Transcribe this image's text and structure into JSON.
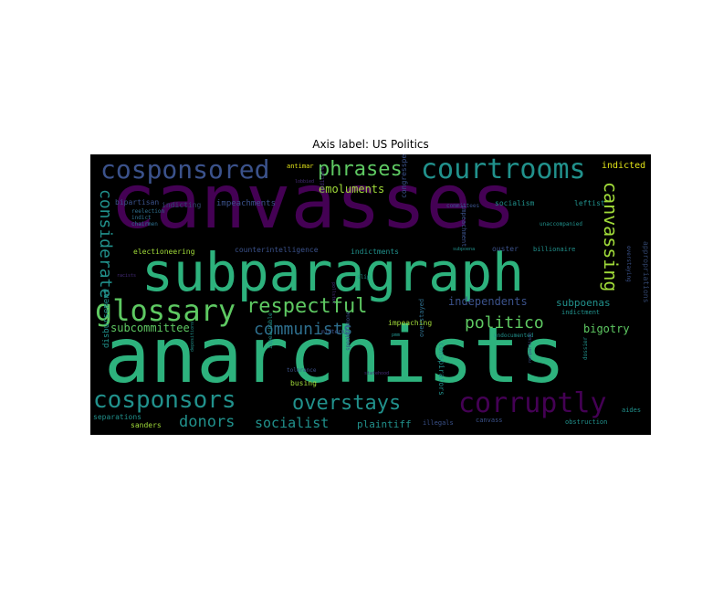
{
  "title": "Axis label: US Politics",
  "colors": {
    "purple": "#440154",
    "darkblue": "#3b528b",
    "slate": "#2e4a7e",
    "teal": "#21918c",
    "seafoam": "#2db27d",
    "green": "#5ec962",
    "lime": "#a0da39",
    "yellow": "#e2e418",
    "navy": "#31446b",
    "violet": "#472d7b"
  },
  "words": [
    {
      "id": "canvasses",
      "text": "canvasses",
      "color": "#440154"
    },
    {
      "id": "subparagraph",
      "text": "subparagraph",
      "color": "#2db27d"
    },
    {
      "id": "anarchists",
      "text": "anarchists",
      "color": "#2db27d"
    },
    {
      "id": "cosponsored",
      "text": "cosponsored",
      "color": "#3b528b"
    },
    {
      "id": "courtrooms",
      "text": "courtrooms",
      "color": "#21918c"
    },
    {
      "id": "phrases",
      "text": "phrases",
      "color": "#5ec962"
    },
    {
      "id": "glossary",
      "text": "glossary",
      "color": "#5ec962"
    },
    {
      "id": "respectful",
      "text": "respectful",
      "color": "#5ec962"
    },
    {
      "id": "cosponsors",
      "text": "cosponsors",
      "color": "#21918c"
    },
    {
      "id": "overstays",
      "text": "overstays",
      "color": "#21918c"
    },
    {
      "id": "corruptly",
      "text": "corruptly",
      "color": "#440154"
    },
    {
      "id": "canvassing",
      "text": "canvassing",
      "color": "#a0da39"
    },
    {
      "id": "considerate",
      "text": "considerate",
      "color": "#21918c"
    },
    {
      "id": "communists",
      "text": "communists",
      "color": "#2e6f8e"
    },
    {
      "id": "politico",
      "text": "politico",
      "color": "#5ec962"
    },
    {
      "id": "donors",
      "text": "donors",
      "color": "#21918c"
    },
    {
      "id": "socialist",
      "text": "socialist",
      "color": "#21918c"
    },
    {
      "id": "emoluments",
      "text": "emoluments",
      "color": "#a0da39"
    },
    {
      "id": "subcommittee",
      "text": "subcommittee",
      "color": "#5ec962"
    },
    {
      "id": "independents",
      "text": "independents",
      "color": "#3b528b"
    },
    {
      "id": "subpoenas",
      "text": "subpoenas",
      "color": "#21918c"
    },
    {
      "id": "bigotry",
      "text": "bigotry",
      "color": "#5ec962"
    },
    {
      "id": "plaintiff",
      "text": "plaintiff",
      "color": "#21918c"
    },
    {
      "id": "antimar",
      "text": "antimar",
      "color": "#e2e418"
    },
    {
      "id": "indicted",
      "text": "indicted",
      "color": "#e2e418"
    },
    {
      "id": "impeachments",
      "text": "impeachments",
      "color": "#3b528b"
    },
    {
      "id": "indicting",
      "text": "indicting",
      "color": "#31446b"
    },
    {
      "id": "bipartisan",
      "text": "bipartisan",
      "color": "#3b528b"
    },
    {
      "id": "reelection",
      "text": "reelection",
      "color": "#2e6f8e"
    },
    {
      "id": "indict",
      "text": "indict",
      "color": "#2e6f8e"
    },
    {
      "id": "chairmen",
      "text": "chairmen",
      "color": "#2e6f8e"
    },
    {
      "id": "electioneering",
      "text": "electioneering",
      "color": "#a0da39"
    },
    {
      "id": "counterintelligence",
      "text": "counterintelligence",
      "color": "#3b528b"
    },
    {
      "id": "indictments",
      "text": "indictments",
      "color": "#21918c"
    },
    {
      "id": "ouster",
      "text": "ouster",
      "color": "#3b528b"
    },
    {
      "id": "socialism",
      "text": "socialism",
      "color": "#21918c"
    },
    {
      "id": "leftist",
      "text": "leftist",
      "color": "#21918c"
    },
    {
      "id": "committees",
      "text": "committees",
      "color": "#3b528b"
    },
    {
      "id": "impeachment",
      "text": "impeachment",
      "color": "#3b528b"
    },
    {
      "id": "unaccompanied",
      "text": "unaccompanied",
      "color": "#21918c"
    },
    {
      "id": "subpoena",
      "text": "subpoena",
      "color": "#21918c"
    },
    {
      "id": "billionaire",
      "text": "billionaire",
      "color": "#21918c"
    },
    {
      "id": "indictment",
      "text": "indictment",
      "color": "#21918c"
    },
    {
      "id": "impeaching",
      "text": "impeaching",
      "color": "#a0da39"
    },
    {
      "id": "pmm",
      "text": "pmm",
      "color": "#21918c"
    },
    {
      "id": "midterms",
      "text": "midterms",
      "color": "#3b528b"
    },
    {
      "id": "undocumented",
      "text": "undocumented",
      "color": "#21918c"
    },
    {
      "id": "tolerance",
      "text": "tolerance",
      "color": "#3b528b"
    },
    {
      "id": "busing",
      "text": "busing",
      "color": "#a0da39"
    },
    {
      "id": "disbursement",
      "text": "disbursement",
      "color": "#21918c"
    },
    {
      "id": "separations",
      "text": "separations",
      "color": "#21918c"
    },
    {
      "id": "sanders",
      "text": "sanders",
      "color": "#a0da39"
    },
    {
      "id": "illegals",
      "text": "illegals",
      "color": "#3b528b"
    },
    {
      "id": "canvass",
      "text": "canvass",
      "color": "#3b528b"
    },
    {
      "id": "obstruction",
      "text": "obstruction",
      "color": "#21918c"
    },
    {
      "id": "aides",
      "text": "aides",
      "color": "#21918c"
    },
    {
      "id": "racists",
      "text": "racists",
      "color": "#472d7b"
    },
    {
      "id": "slip",
      "text": "slip",
      "color": "#21918c"
    },
    {
      "id": "dossier",
      "text": "dossier",
      "color": "#21918c"
    },
    {
      "id": "conspirators",
      "text": "conspirators",
      "color": "#21918c"
    },
    {
      "id": "overstayed",
      "text": "overstayed",
      "color": "#2e6f8e"
    },
    {
      "id": "congressperson",
      "text": "congressperson",
      "color": "#3b528b"
    },
    {
      "id": "appropriations",
      "text": "appropriations",
      "color": "#31446b"
    },
    {
      "id": "overstaying",
      "text": "overstaying",
      "color": "#3b528b"
    },
    {
      "id": "impeachable",
      "text": "impeachable",
      "color": "#21918c"
    },
    {
      "id": "depositions",
      "text": "depositions",
      "color": "#21918c"
    },
    {
      "id": "speakerphone",
      "text": "speakerphone",
      "color": "#3b528b"
    },
    {
      "id": "nonpartisan",
      "text": "nonpartisan",
      "color": "#3b528b"
    },
    {
      "id": "medicare",
      "text": "medicare",
      "color": "#472d7b"
    },
    {
      "id": "lobbied",
      "text": "lobbied",
      "color": "#472d7b"
    },
    {
      "id": "pollster",
      "text": "pollster",
      "color": "#472d7b"
    },
    {
      "id": "statehood",
      "text": "statehood",
      "color": "#472d7b"
    }
  ]
}
